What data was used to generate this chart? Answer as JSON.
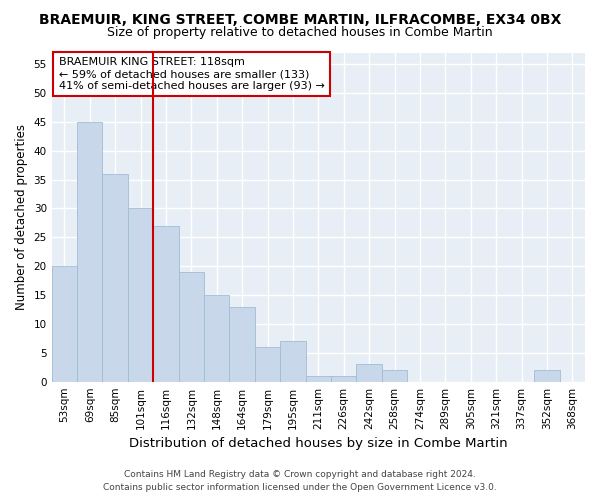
{
  "title": "BRAEMUIR, KING STREET, COMBE MARTIN, ILFRACOMBE, EX34 0BX",
  "subtitle": "Size of property relative to detached houses in Combe Martin",
  "xlabel": "Distribution of detached houses by size in Combe Martin",
  "ylabel": "Number of detached properties",
  "categories": [
    "53sqm",
    "69sqm",
    "85sqm",
    "101sqm",
    "116sqm",
    "132sqm",
    "148sqm",
    "164sqm",
    "179sqm",
    "195sqm",
    "211sqm",
    "226sqm",
    "242sqm",
    "258sqm",
    "274sqm",
    "289sqm",
    "305sqm",
    "321sqm",
    "337sqm",
    "352sqm",
    "368sqm"
  ],
  "values": [
    20,
    45,
    36,
    30,
    27,
    19,
    15,
    13,
    6,
    7,
    1,
    1,
    3,
    2,
    0,
    0,
    0,
    0,
    0,
    2,
    0
  ],
  "bar_color": "#c8d8ea",
  "bar_edgecolor": "#a0bdd4",
  "vline_color": "#cc0000",
  "ylim": [
    0,
    57
  ],
  "yticks": [
    0,
    5,
    10,
    15,
    20,
    25,
    30,
    35,
    40,
    45,
    50,
    55
  ],
  "annotation_title": "BRAEMUIR KING STREET: 118sqm",
  "annotation_line1": "← 59% of detached houses are smaller (133)",
  "annotation_line2": "41% of semi-detached houses are larger (93) →",
  "annotation_box_color": "#ffffff",
  "annotation_box_edgecolor": "#cc0000",
  "footer1": "Contains HM Land Registry data © Crown copyright and database right 2024.",
  "footer2": "Contains public sector information licensed under the Open Government Licence v3.0.",
  "background_color": "#ffffff",
  "plot_background_color": "#e8eef5",
  "grid_color": "#ffffff",
  "title_fontsize": 10,
  "subtitle_fontsize": 9,
  "xlabel_fontsize": 9.5,
  "ylabel_fontsize": 8.5,
  "tick_fontsize": 7.5,
  "annotation_fontsize": 8,
  "footer_fontsize": 6.5
}
